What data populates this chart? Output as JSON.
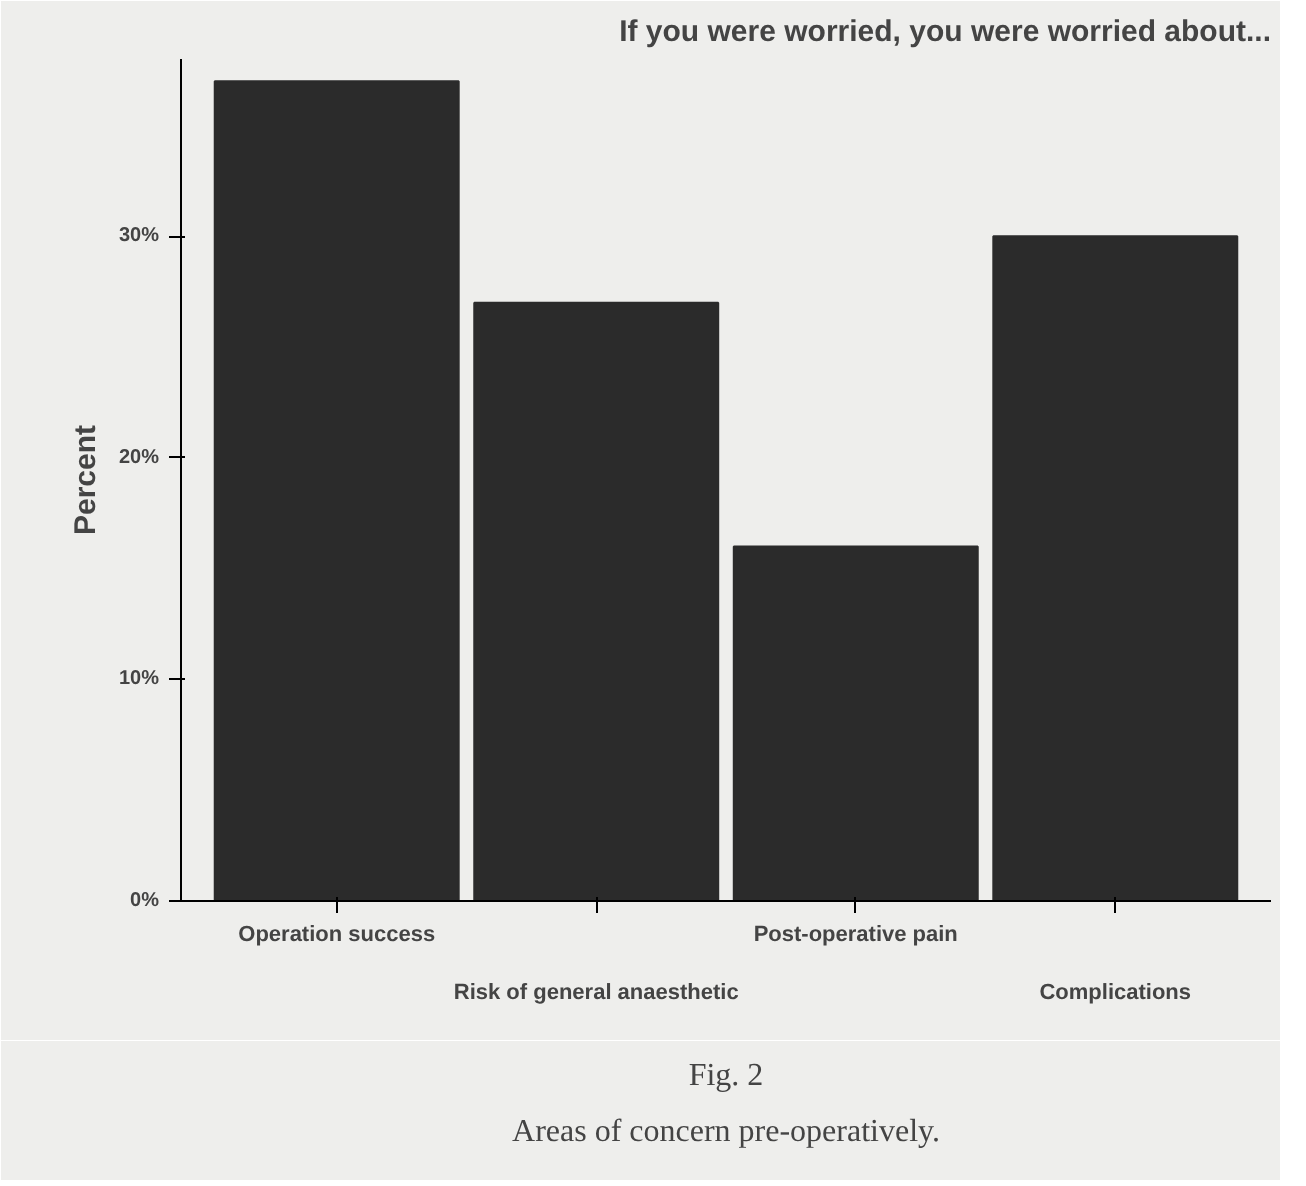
{
  "chart_data": {
    "type": "bar",
    "title": "If you were worried, you were worried about...",
    "ylabel": "Percent",
    "categories": [
      "Operation success",
      "Risk of general anaesthetic",
      "Post-operative pain",
      "Complications"
    ],
    "values": [
      37,
      27,
      16,
      30
    ],
    "color": "#2b2b2b",
    "ylim": [
      0,
      38
    ],
    "yticks": [
      {
        "value": 0,
        "label": "0%"
      },
      {
        "value": 10,
        "label": "10%"
      },
      {
        "value": 20,
        "label": "20%"
      },
      {
        "value": 30,
        "label": "30%"
      }
    ],
    "grid": false,
    "annotations": [
      "Fig. 2",
      "Areas of concern pre-operatively."
    ]
  }
}
